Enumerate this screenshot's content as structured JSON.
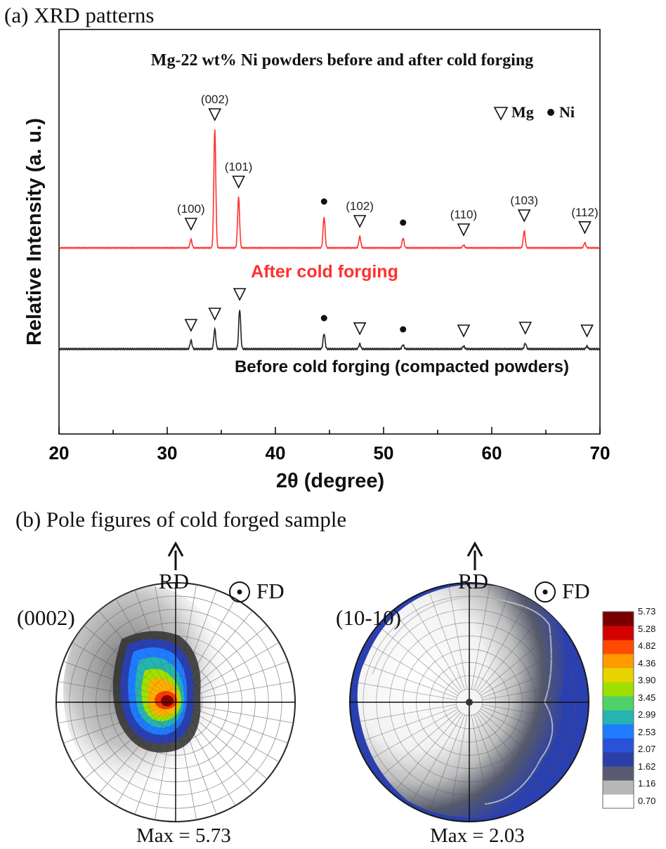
{
  "panel_a": {
    "label": "(a) XRD patterns"
  },
  "panel_b": {
    "label": "(b) Pole figures of cold forged sample",
    "left": {
      "plane": "(0002)",
      "rd": "RD",
      "fd": "FD",
      "max": "Max = 5.73"
    },
    "right": {
      "plane": "(10-10)",
      "rd": "RD",
      "fd": "FD",
      "max": "Max = 2.03"
    },
    "colorbar": {
      "ticks": [
        "5.73",
        "5.28",
        "4.82",
        "4.36",
        "3.90",
        "3.45",
        "2.99",
        "2.53",
        "2.07",
        "1.62",
        "1.16",
        "0.70"
      ],
      "colors": [
        "#7a0000",
        "#d40000",
        "#ff4a00",
        "#ff9a00",
        "#e6d400",
        "#9fe000",
        "#4fd06a",
        "#25b4b0",
        "#1f7bff",
        "#2a52d8",
        "#2c3fa8",
        "#5a5a70",
        "#b8b8b8",
        "#ffffff"
      ]
    }
  },
  "chart_data": {
    "type": "line",
    "title": "Mg-22 wt% Ni powders before and after cold forging",
    "xlabel": "2θ (degree)",
    "ylabel": "Relative Intensity (a. u.)",
    "xlim": [
      20,
      70
    ],
    "x_ticks": [
      20,
      30,
      40,
      50,
      60,
      70
    ],
    "legend": {
      "mg": "Mg",
      "ni": "Ni",
      "placement": "top-right"
    },
    "series": [
      {
        "name": "After cold forging",
        "color": "#ff3030",
        "offset": 0.36,
        "peaks": [
          {
            "x": 32.2,
            "h": 0.03,
            "phase": "Mg",
            "label": "(100)"
          },
          {
            "x": 34.4,
            "h": 0.42,
            "phase": "Mg",
            "label": "(002)"
          },
          {
            "x": 36.6,
            "h": 0.18,
            "phase": "Mg",
            "label": "(101)"
          },
          {
            "x": 44.5,
            "h": 0.11,
            "phase": "Ni",
            "label": ""
          },
          {
            "x": 47.8,
            "h": 0.04,
            "phase": "Mg",
            "label": "(102)"
          },
          {
            "x": 51.8,
            "h": 0.035,
            "phase": "Ni",
            "label": ""
          },
          {
            "x": 57.4,
            "h": 0.01,
            "phase": "Mg",
            "label": "(110)"
          },
          {
            "x": 63.0,
            "h": 0.06,
            "phase": "Mg",
            "label": "(103)"
          },
          {
            "x": 68.6,
            "h": 0.018,
            "phase": "Mg",
            "label": "(112)"
          }
        ]
      },
      {
        "name": "Before cold forging (compacted powders)",
        "color": "#222222",
        "offset": 0.0,
        "peaks": [
          {
            "x": 32.2,
            "h": 0.03,
            "phase": "Mg",
            "label": ""
          },
          {
            "x": 34.4,
            "h": 0.07,
            "phase": "Mg",
            "label": ""
          },
          {
            "x": 36.7,
            "h": 0.14,
            "phase": "Mg",
            "label": ""
          },
          {
            "x": 44.5,
            "h": 0.055,
            "phase": "Ni",
            "label": ""
          },
          {
            "x": 47.8,
            "h": 0.018,
            "phase": "Mg",
            "label": ""
          },
          {
            "x": 51.8,
            "h": 0.015,
            "phase": "Ni",
            "label": ""
          },
          {
            "x": 57.4,
            "h": 0.01,
            "phase": "Mg",
            "label": ""
          },
          {
            "x": 63.1,
            "h": 0.02,
            "phase": "Mg",
            "label": ""
          },
          {
            "x": 68.8,
            "h": 0.01,
            "phase": "Mg",
            "label": ""
          }
        ]
      }
    ]
  }
}
